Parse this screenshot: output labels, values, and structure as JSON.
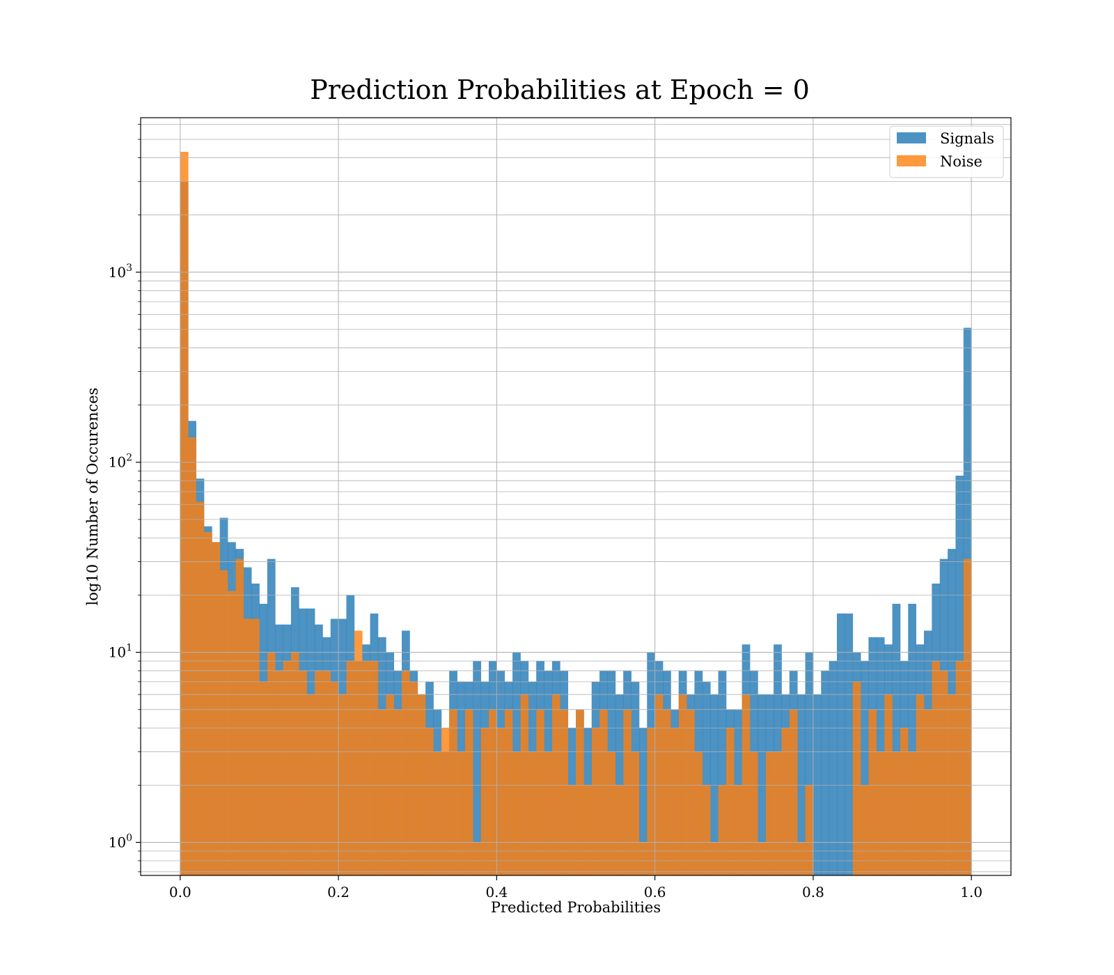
{
  "chart_data": {
    "type": "bar",
    "subtype": "histogram-overlay",
    "title": "Prediction Probabilities at Epoch = 0",
    "xlabel": "Predicted Probabilities",
    "ylabel": "log10 Number of Occurences",
    "xlim": [
      -0.05,
      1.05
    ],
    "ylim": [
      0.67,
      6500
    ],
    "yscale": "log",
    "bin_width": 0.01,
    "bin_start": 0.0,
    "grid": true,
    "legend_position": "top-right",
    "x_ticks": [
      {
        "value": 0.0,
        "label": "0.0"
      },
      {
        "value": 0.2,
        "label": "0.2"
      },
      {
        "value": 0.4,
        "label": "0.4"
      },
      {
        "value": 0.6,
        "label": "0.6"
      },
      {
        "value": 0.8,
        "label": "0.8"
      },
      {
        "value": 1.0,
        "label": "1.0"
      }
    ],
    "y_ticks": [
      {
        "value": 1,
        "base": "10",
        "exp": "0"
      },
      {
        "value": 10,
        "base": "10",
        "exp": "1"
      },
      {
        "value": 100,
        "base": "10",
        "exp": "2"
      },
      {
        "value": 1000,
        "base": "10",
        "exp": "3"
      }
    ],
    "series": [
      {
        "name": "Signals",
        "color": "#1f77b4",
        "values": [
          3000,
          165,
          82,
          46,
          38,
          51,
          38,
          35,
          28,
          23,
          18,
          31,
          14,
          14,
          22,
          17,
          17,
          14,
          12,
          15,
          15,
          20,
          9,
          11,
          16,
          12,
          10,
          8,
          13,
          8,
          6,
          7,
          5,
          3,
          8,
          7,
          7,
          9,
          7,
          9,
          8,
          7,
          10,
          9,
          7,
          9,
          8,
          9,
          8,
          4,
          5,
          4,
          7,
          8,
          8,
          6,
          8,
          7,
          4,
          10,
          9,
          8,
          5,
          8,
          6,
          8,
          7,
          6,
          8,
          5,
          5,
          11,
          8,
          6,
          6,
          11,
          6,
          8,
          6,
          10,
          6,
          8,
          9,
          16,
          16,
          10,
          9,
          12,
          12,
          11,
          18,
          9,
          18,
          11,
          13,
          23,
          31,
          35,
          85,
          510
        ]
      },
      {
        "name": "Noise",
        "color": "#ff7f0e",
        "values": [
          4300,
          135,
          62,
          43,
          38,
          27,
          21,
          31,
          15,
          15,
          7,
          10,
          8,
          9,
          10,
          8,
          6,
          8,
          8,
          7,
          6,
          9,
          13,
          9,
          9,
          5,
          6,
          5,
          8,
          7,
          6,
          4,
          3,
          4,
          5,
          3,
          5,
          1,
          4,
          5,
          4,
          5,
          3,
          6,
          3,
          5,
          3,
          6,
          5,
          2,
          5,
          2,
          4,
          5,
          3,
          2,
          5,
          3,
          1,
          4,
          6,
          5,
          4,
          6,
          5,
          3,
          2,
          1,
          2,
          4,
          2,
          6,
          3,
          1,
          3,
          3,
          4,
          5,
          1,
          2,
          0,
          0,
          0,
          0,
          0,
          7,
          2,
          5,
          3,
          6,
          3,
          4,
          3,
          6,
          5,
          9,
          8,
          6,
          9,
          31
        ]
      }
    ]
  }
}
